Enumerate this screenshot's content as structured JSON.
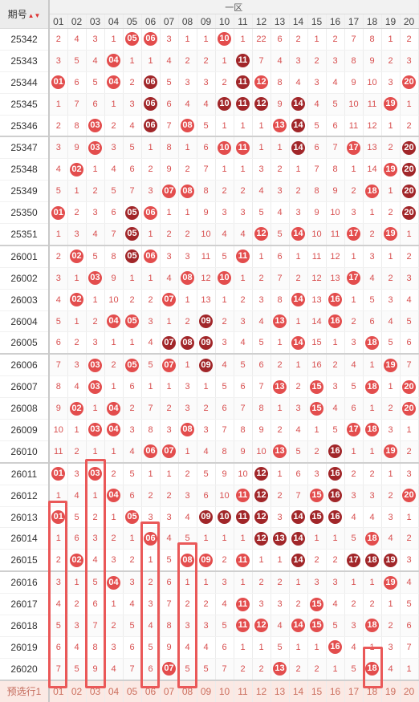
{
  "header": {
    "issue_label": "期号",
    "sort_icon": "sort-triangles-icon",
    "zone_label": "一区"
  },
  "columns": [
    "01",
    "02",
    "03",
    "04",
    "05",
    "06",
    "07",
    "08",
    "09",
    "10",
    "11",
    "12",
    "13",
    "14",
    "15",
    "16",
    "17",
    "18",
    "19",
    "20"
  ],
  "rows": [
    {
      "issue": "25342",
      "cells": [
        "2",
        "4",
        "3",
        "1",
        "B05",
        "B06",
        "3",
        "1",
        "1",
        "B10",
        "1",
        "22",
        "6",
        "2",
        "1",
        "2",
        "7",
        "8",
        "1",
        "2"
      ]
    },
    {
      "issue": "25343",
      "cells": [
        "3",
        "5",
        "4",
        "B04",
        "1",
        "1",
        "4",
        "2",
        "2",
        "1",
        "D11",
        "7",
        "4",
        "3",
        "2",
        "3",
        "8",
        "9",
        "2",
        "3"
      ]
    },
    {
      "issue": "25344",
      "cells": [
        "B01",
        "6",
        "5",
        "B04",
        "2",
        "D06",
        "5",
        "3",
        "3",
        "2",
        "D11",
        "B12",
        "8",
        "4",
        "3",
        "4",
        "9",
        "10",
        "3",
        "B20"
      ]
    },
    {
      "issue": "25345",
      "cells": [
        "1",
        "7",
        "6",
        "1",
        "3",
        "D06",
        "6",
        "4",
        "4",
        "D10",
        "D11",
        "D12",
        "9",
        "D14",
        "4",
        "5",
        "10",
        "11",
        "B19",
        "1"
      ]
    },
    {
      "issue": "25346",
      "cells": [
        "2",
        "8",
        "B03",
        "2",
        "4",
        "D06",
        "7",
        "B08",
        "5",
        "1",
        "1",
        "1",
        "B13",
        "D14",
        "5",
        "6",
        "11",
        "12",
        "1",
        "2"
      ]
    },
    {
      "issue": "25347",
      "cells": [
        "3",
        "9",
        "B03",
        "3",
        "5",
        "1",
        "8",
        "1",
        "6",
        "B10",
        "B11",
        "1",
        "1",
        "D14",
        "6",
        "7",
        "B17",
        "13",
        "2",
        "D20"
      ]
    },
    {
      "issue": "25348",
      "cells": [
        "4",
        "B02",
        "1",
        "4",
        "6",
        "2",
        "9",
        "2",
        "7",
        "1",
        "1",
        "3",
        "2",
        "1",
        "7",
        "8",
        "1",
        "14",
        "B19",
        "D20"
      ]
    },
    {
      "issue": "25349",
      "cells": [
        "5",
        "1",
        "2",
        "5",
        "7",
        "3",
        "B07",
        "B08",
        "8",
        "2",
        "2",
        "4",
        "3",
        "2",
        "8",
        "9",
        "2",
        "B18",
        "1",
        "D20"
      ]
    },
    {
      "issue": "25350",
      "cells": [
        "B01",
        "2",
        "3",
        "6",
        "D05",
        "B06",
        "1",
        "1",
        "9",
        "3",
        "3",
        "5",
        "4",
        "3",
        "9",
        "10",
        "3",
        "1",
        "2",
        "D20"
      ]
    },
    {
      "issue": "25351",
      "cells": [
        "1",
        "3",
        "4",
        "7",
        "D05",
        "1",
        "2",
        "2",
        "10",
        "4",
        "4",
        "B12",
        "5",
        "B14",
        "10",
        "11",
        "B17",
        "2",
        "B19",
        "1"
      ]
    },
    {
      "issue": "26001",
      "cells": [
        "2",
        "B02",
        "5",
        "8",
        "D05",
        "B06",
        "3",
        "3",
        "11",
        "5",
        "B11",
        "1",
        "6",
        "1",
        "11",
        "12",
        "1",
        "3",
        "1",
        "2"
      ]
    },
    {
      "issue": "26002",
      "cells": [
        "3",
        "1",
        "B03",
        "9",
        "1",
        "1",
        "4",
        "B08",
        "12",
        "B10",
        "1",
        "2",
        "7",
        "2",
        "12",
        "13",
        "B17",
        "4",
        "2",
        "3"
      ]
    },
    {
      "issue": "26003",
      "cells": [
        "4",
        "B02",
        "1",
        "10",
        "2",
        "2",
        "B07",
        "1",
        "13",
        "1",
        "2",
        "3",
        "8",
        "B14",
        "13",
        "B16",
        "1",
        "5",
        "3",
        "4"
      ]
    },
    {
      "issue": "26004",
      "cells": [
        "5",
        "1",
        "2",
        "B04",
        "B05",
        "3",
        "1",
        "2",
        "D09",
        "2",
        "3",
        "4",
        "B13",
        "1",
        "14",
        "B16",
        "2",
        "6",
        "4",
        "5"
      ]
    },
    {
      "issue": "26005",
      "cells": [
        "6",
        "2",
        "3",
        "1",
        "1",
        "4",
        "D07",
        "D08",
        "D09",
        "3",
        "4",
        "5",
        "1",
        "B14",
        "15",
        "1",
        "3",
        "B18",
        "5",
        "6"
      ]
    },
    {
      "issue": "26006",
      "cells": [
        "7",
        "3",
        "B03",
        "2",
        "B05",
        "5",
        "B07",
        "1",
        "D09",
        "4",
        "5",
        "6",
        "2",
        "1",
        "16",
        "2",
        "4",
        "1",
        "B19",
        "7"
      ]
    },
    {
      "issue": "26007",
      "cells": [
        "8",
        "4",
        "B03",
        "1",
        "6",
        "1",
        "1",
        "3",
        "1",
        "5",
        "6",
        "7",
        "B13",
        "2",
        "B15",
        "3",
        "5",
        "B18",
        "1",
        "B20"
      ]
    },
    {
      "issue": "26008",
      "cells": [
        "9",
        "B02",
        "1",
        "B04",
        "2",
        "7",
        "2",
        "3",
        "2",
        "6",
        "7",
        "8",
        "1",
        "3",
        "B15",
        "4",
        "6",
        "1",
        "2",
        "B20"
      ]
    },
    {
      "issue": "26009",
      "cells": [
        "10",
        "1",
        "B03",
        "B04",
        "3",
        "8",
        "3",
        "B08",
        "3",
        "7",
        "8",
        "9",
        "2",
        "4",
        "1",
        "5",
        "B17",
        "B18",
        "3",
        "1"
      ]
    },
    {
      "issue": "26010",
      "cells": [
        "11",
        "2",
        "1",
        "1",
        "4",
        "B06",
        "B07",
        "1",
        "4",
        "8",
        "9",
        "10",
        "B13",
        "5",
        "2",
        "D16",
        "1",
        "1",
        "B19",
        "2"
      ]
    },
    {
      "issue": "26011",
      "cells": [
        "B01",
        "3",
        "B03",
        "2",
        "5",
        "1",
        "1",
        "2",
        "5",
        "9",
        "10",
        "D12",
        "1",
        "6",
        "3",
        "D16",
        "2",
        "2",
        "1",
        "3"
      ]
    },
    {
      "issue": "26012",
      "cells": [
        "1",
        "4",
        "1",
        "B04",
        "6",
        "2",
        "2",
        "3",
        "6",
        "10",
        "B11",
        "D12",
        "2",
        "7",
        "B15",
        "D16",
        "3",
        "3",
        "2",
        "B20"
      ]
    },
    {
      "issue": "26013",
      "cells": [
        "B01",
        "5",
        "2",
        "1",
        "B05",
        "3",
        "3",
        "4",
        "D09",
        "D10",
        "D11",
        "D12",
        "3",
        "D14",
        "D15",
        "D16",
        "4",
        "4",
        "3",
        "1"
      ]
    },
    {
      "issue": "26014",
      "cells": [
        "1",
        "6",
        "3",
        "2",
        "1",
        "B06",
        "4",
        "5",
        "1",
        "1",
        "1",
        "D12",
        "D13",
        "D14",
        "1",
        "1",
        "5",
        "B18",
        "4",
        "2"
      ]
    },
    {
      "issue": "26015",
      "cells": [
        "2",
        "B02",
        "4",
        "3",
        "2",
        "1",
        "5",
        "B08",
        "B09",
        "2",
        "B11",
        "1",
        "1",
        "D14",
        "2",
        "2",
        "D17",
        "D18",
        "D19",
        "3"
      ]
    },
    {
      "issue": "26016",
      "cells": [
        "3",
        "1",
        "5",
        "B04",
        "3",
        "2",
        "6",
        "1",
        "1",
        "3",
        "1",
        "2",
        "2",
        "1",
        "3",
        "3",
        "1",
        "1",
        "B19",
        "4"
      ]
    },
    {
      "issue": "26017",
      "cells": [
        "4",
        "2",
        "6",
        "1",
        "4",
        "3",
        "7",
        "2",
        "2",
        "4",
        "B11",
        "3",
        "3",
        "2",
        "B15",
        "4",
        "2",
        "2",
        "1",
        "5"
      ]
    },
    {
      "issue": "26018",
      "cells": [
        "5",
        "3",
        "7",
        "2",
        "5",
        "4",
        "8",
        "3",
        "3",
        "5",
        "B11",
        "B12",
        "4",
        "B14",
        "B15",
        "5",
        "3",
        "B18",
        "2",
        "6"
      ]
    },
    {
      "issue": "26019",
      "cells": [
        "6",
        "4",
        "8",
        "3",
        "6",
        "5",
        "9",
        "4",
        "4",
        "6",
        "1",
        "1",
        "5",
        "1",
        "1",
        "B16",
        "4",
        "1",
        "3",
        "7"
      ]
    },
    {
      "issue": "26020",
      "cells": [
        "7",
        "5",
        "9",
        "4",
        "7",
        "6",
        "B07",
        "5",
        "5",
        "7",
        "2",
        "2",
        "B13",
        "2",
        "2",
        "1",
        "5",
        "B18",
        "4",
        "1"
      ]
    }
  ],
  "preselect": {
    "label": "预选行1",
    "cells": [
      "01",
      "02",
      "03",
      "04",
      "05",
      "06",
      "07",
      "08",
      "09",
      "10",
      "11",
      "12",
      "13",
      "14",
      "15",
      "16",
      "17",
      "18",
      "19",
      "20"
    ]
  }
}
